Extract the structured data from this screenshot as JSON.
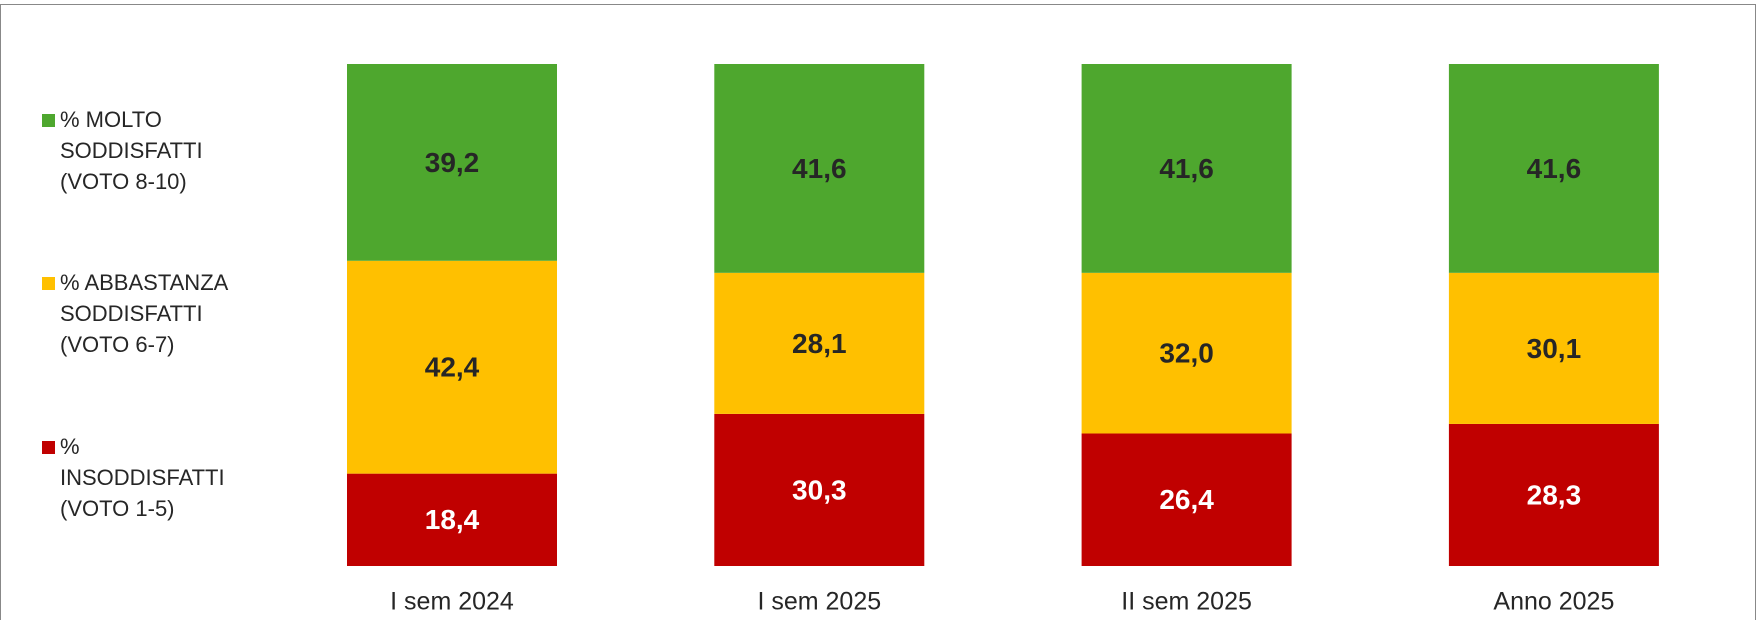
{
  "chart_data": {
    "type": "stacked_bar",
    "categories": [
      "I sem 2024",
      "I sem 2025",
      "II sem 2025",
      "Anno 2025"
    ],
    "series": [
      {
        "name": "% MOLTO SODDISFATTI (VOTO 8-10)",
        "color": "#4ea72e",
        "label_color": "#262626",
        "values": [
          39.2,
          41.6,
          41.6,
          41.6
        ],
        "value_labels": [
          "39,2",
          "41,6",
          "41,6",
          "41,6"
        ]
      },
      {
        "name": "% ABBASTANZA SODDISFATTI (VOTO 6-7)",
        "color": "#ffc000",
        "label_color": "#262626",
        "values": [
          42.4,
          28.1,
          32.0,
          30.1
        ],
        "value_labels": [
          "42,4",
          "28,1",
          "32,0",
          "30,1"
        ]
      },
      {
        "name": "% INSODDISFATTI (VOTO 1-5)",
        "color": "#c00000",
        "label_color": "#ffffff",
        "values": [
          18.4,
          30.3,
          26.4,
          28.3
        ],
        "value_labels": [
          "18,4",
          "30,3",
          "26,4",
          "28,3"
        ]
      }
    ],
    "ylim": [
      0,
      100
    ],
    "legend": "left"
  }
}
